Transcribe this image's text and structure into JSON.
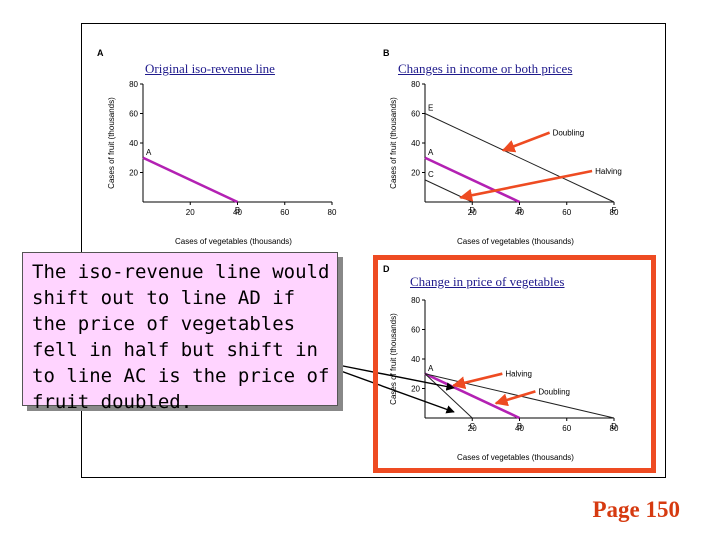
{
  "panel_titles": {
    "A": "Original iso-revenue line",
    "B": "Changes in income or both prices",
    "D": "Change in price of vegetables"
  },
  "callout_text": "The iso-revenue line would shift out to line AD if the price of vegetables fell in half but shift in to line AC is the price of fruit doubled.",
  "page_number": "Page 150",
  "colors": {
    "iso_line": "#b321b3",
    "arrow": "#ee4b22",
    "highlight_border": "#ee4b22",
    "title_text": "#1f1a8c",
    "callout_bg": "#ffd4ff",
    "page_number": "#d63a10"
  },
  "chart_data": [
    {
      "type": "line",
      "panel": "A",
      "xlabel": "Cases of vegetables (thousands)",
      "ylabel": "Cases of fruit (thousands)",
      "xlim": [
        0,
        80
      ],
      "ylim": [
        0,
        80
      ],
      "xticks": [
        20,
        40,
        60,
        80
      ],
      "yticks": [
        20,
        40,
        60,
        80
      ],
      "series": [
        {
          "highlight": true,
          "points": [
            [
              0,
              30
            ],
            [
              40,
              0
            ]
          ]
        }
      ],
      "point_labels": [
        {
          "text": "A",
          "x": 0,
          "y": 30
        },
        {
          "text": "B",
          "x": 40,
          "y": 0
        }
      ],
      "annotations": []
    },
    {
      "type": "line",
      "panel": "B",
      "xlabel": "Cases of vegetables (thousands)",
      "ylabel": "Cases of fruit (thousands)",
      "xlim": [
        0,
        80
      ],
      "ylim": [
        0,
        80
      ],
      "xticks": [
        20,
        40,
        60,
        80
      ],
      "yticks": [
        20,
        40,
        60,
        80
      ],
      "series": [
        {
          "highlight": true,
          "points": [
            [
              0,
              30
            ],
            [
              40,
              0
            ]
          ]
        },
        {
          "highlight": false,
          "points": [
            [
              0,
              60
            ],
            [
              80,
              0
            ]
          ]
        },
        {
          "highlight": false,
          "points": [
            [
              0,
              15
            ],
            [
              20,
              0
            ]
          ]
        }
      ],
      "point_labels": [
        {
          "text": "E",
          "x": 0,
          "y": 60
        },
        {
          "text": "A",
          "x": 0,
          "y": 30
        },
        {
          "text": "C",
          "x": 0,
          "y": 15
        },
        {
          "text": "D",
          "x": 20,
          "y": 0
        },
        {
          "text": "B",
          "x": 40,
          "y": 0
        },
        {
          "text": "F",
          "x": 80,
          "y": 0
        }
      ],
      "annotations": [
        {
          "text": "Doubling",
          "label_at": [
            54,
            45
          ],
          "arrow_to": [
            33,
            35
          ]
        },
        {
          "text": "Halving",
          "label_at": [
            72,
            19
          ],
          "arrow_to": [
            15,
            3
          ]
        }
      ]
    },
    {
      "type": "line",
      "panel": "D",
      "xlabel": "Cases of vegetables (thousands)",
      "ylabel": "Cases of fruit (thousands)",
      "xlim": [
        0,
        80
      ],
      "ylim": [
        0,
        80
      ],
      "xticks": [
        20,
        40,
        60,
        80
      ],
      "yticks": [
        20,
        40,
        60,
        80
      ],
      "series": [
        {
          "highlight": true,
          "points": [
            [
              0,
              30
            ],
            [
              40,
              0
            ]
          ]
        },
        {
          "highlight": false,
          "points": [
            [
              0,
              30
            ],
            [
              80,
              0
            ]
          ]
        },
        {
          "highlight": false,
          "points": [
            [
              0,
              30
            ],
            [
              20,
              0
            ]
          ]
        }
      ],
      "point_labels": [
        {
          "text": "A",
          "x": 0,
          "y": 30
        },
        {
          "text": "C",
          "x": 20,
          "y": 0
        },
        {
          "text": "B",
          "x": 40,
          "y": 0
        },
        {
          "text": "D",
          "x": 80,
          "y": 0
        }
      ],
      "annotations": [
        {
          "text": "Halving",
          "label_at": [
            34,
            28
          ],
          "arrow_to": [
            12,
            22
          ]
        },
        {
          "text": "Doubling",
          "label_at": [
            48,
            16
          ],
          "arrow_to": [
            30,
            10
          ]
        }
      ]
    }
  ]
}
